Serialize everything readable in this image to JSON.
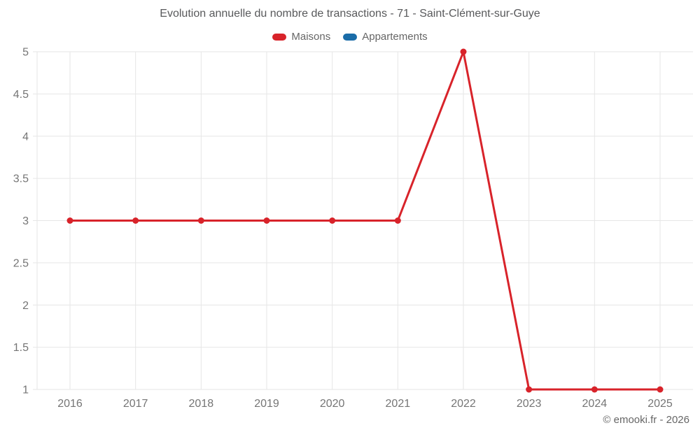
{
  "header": {
    "title": "Evolution annuelle du nombre de transactions - 71 - Saint-Clément-sur-Guye"
  },
  "footer": {
    "copyright": "© emooki.fr - 2026"
  },
  "colors": {
    "background": "#ffffff",
    "grid": "#e6e6e6",
    "tick_text": "#757575",
    "title_text": "#58595b",
    "legend_text": "#666666",
    "maisons_red": "#d8232a",
    "appartements_blue": "#1a6ca8"
  },
  "chart_data": {
    "type": "line",
    "title": "Evolution annuelle du nombre de transactions - 71 - Saint-Clément-sur-Guye",
    "categories": [
      "2016",
      "2017",
      "2018",
      "2019",
      "2020",
      "2021",
      "2022",
      "2023",
      "2024",
      "2025"
    ],
    "series": [
      {
        "name": "Maisons",
        "color": "#d8232a",
        "values": [
          3,
          3,
          3,
          3,
          3,
          3,
          5,
          1,
          1,
          1
        ]
      },
      {
        "name": "Appartements",
        "color": "#1a6ca8",
        "values": [
          null,
          null,
          null,
          null,
          null,
          null,
          null,
          null,
          null,
          null
        ]
      }
    ],
    "ylim": [
      1,
      5
    ],
    "ytick_step": 0.5,
    "ytick_labels": [
      "1",
      "1.5",
      "2",
      "2.5",
      "3",
      "3.5",
      "4",
      "4.5",
      "5"
    ],
    "xlabel": "",
    "ylabel": "",
    "grid": true,
    "legend_position": "top",
    "marker": "circle"
  }
}
